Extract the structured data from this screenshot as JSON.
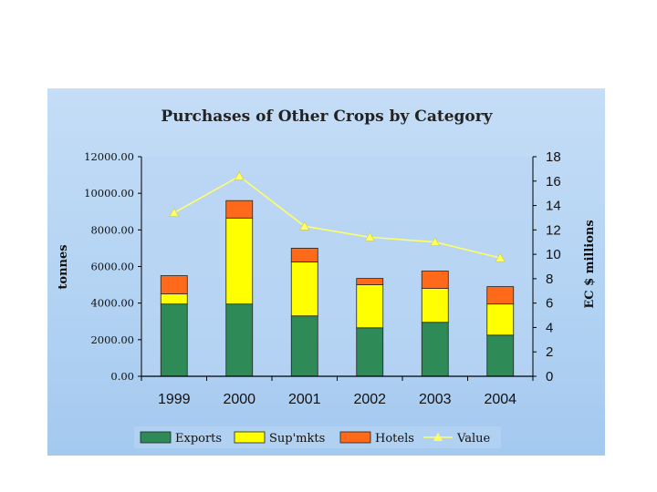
{
  "chart_data": {
    "type": "bar",
    "stacked": true,
    "title": "Purchases of Other Crops by Category",
    "categories": [
      "1999",
      "2000",
      "2001",
      "2002",
      "2003",
      "2004"
    ],
    "ylabel": "tonnes",
    "ylim": [
      0,
      12000
    ],
    "yticks": [
      "0.00",
      "2000.00",
      "4000.00",
      "6000.00",
      "8000.00",
      "10000.00",
      "12000.00"
    ],
    "y2label": "EC $ millions",
    "y2lim": [
      0,
      18
    ],
    "y2ticks": [
      "0",
      "2",
      "4",
      "6",
      "8",
      "10",
      "12",
      "14",
      "16",
      "18"
    ],
    "series": [
      {
        "name": "Exports",
        "color": "#2e8b57",
        "axis": "left",
        "values": [
          3950,
          3950,
          3300,
          2650,
          2950,
          2250
        ]
      },
      {
        "name": "Sup'mkts",
        "color": "#ffff00",
        "axis": "left",
        "values": [
          550,
          4700,
          2950,
          2350,
          1850,
          1700
        ]
      },
      {
        "name": "Hotels",
        "color": "#ff6a1a",
        "axis": "left",
        "values": [
          1000,
          950,
          750,
          350,
          950,
          950
        ]
      },
      {
        "name": "Value",
        "color": "#ffff66",
        "axis": "right",
        "type": "line",
        "marker": "triangle",
        "values": [
          13.4,
          16.4,
          12.3,
          11.4,
          11.0,
          9.7
        ]
      }
    ],
    "legend": "bottom",
    "grid": false
  }
}
